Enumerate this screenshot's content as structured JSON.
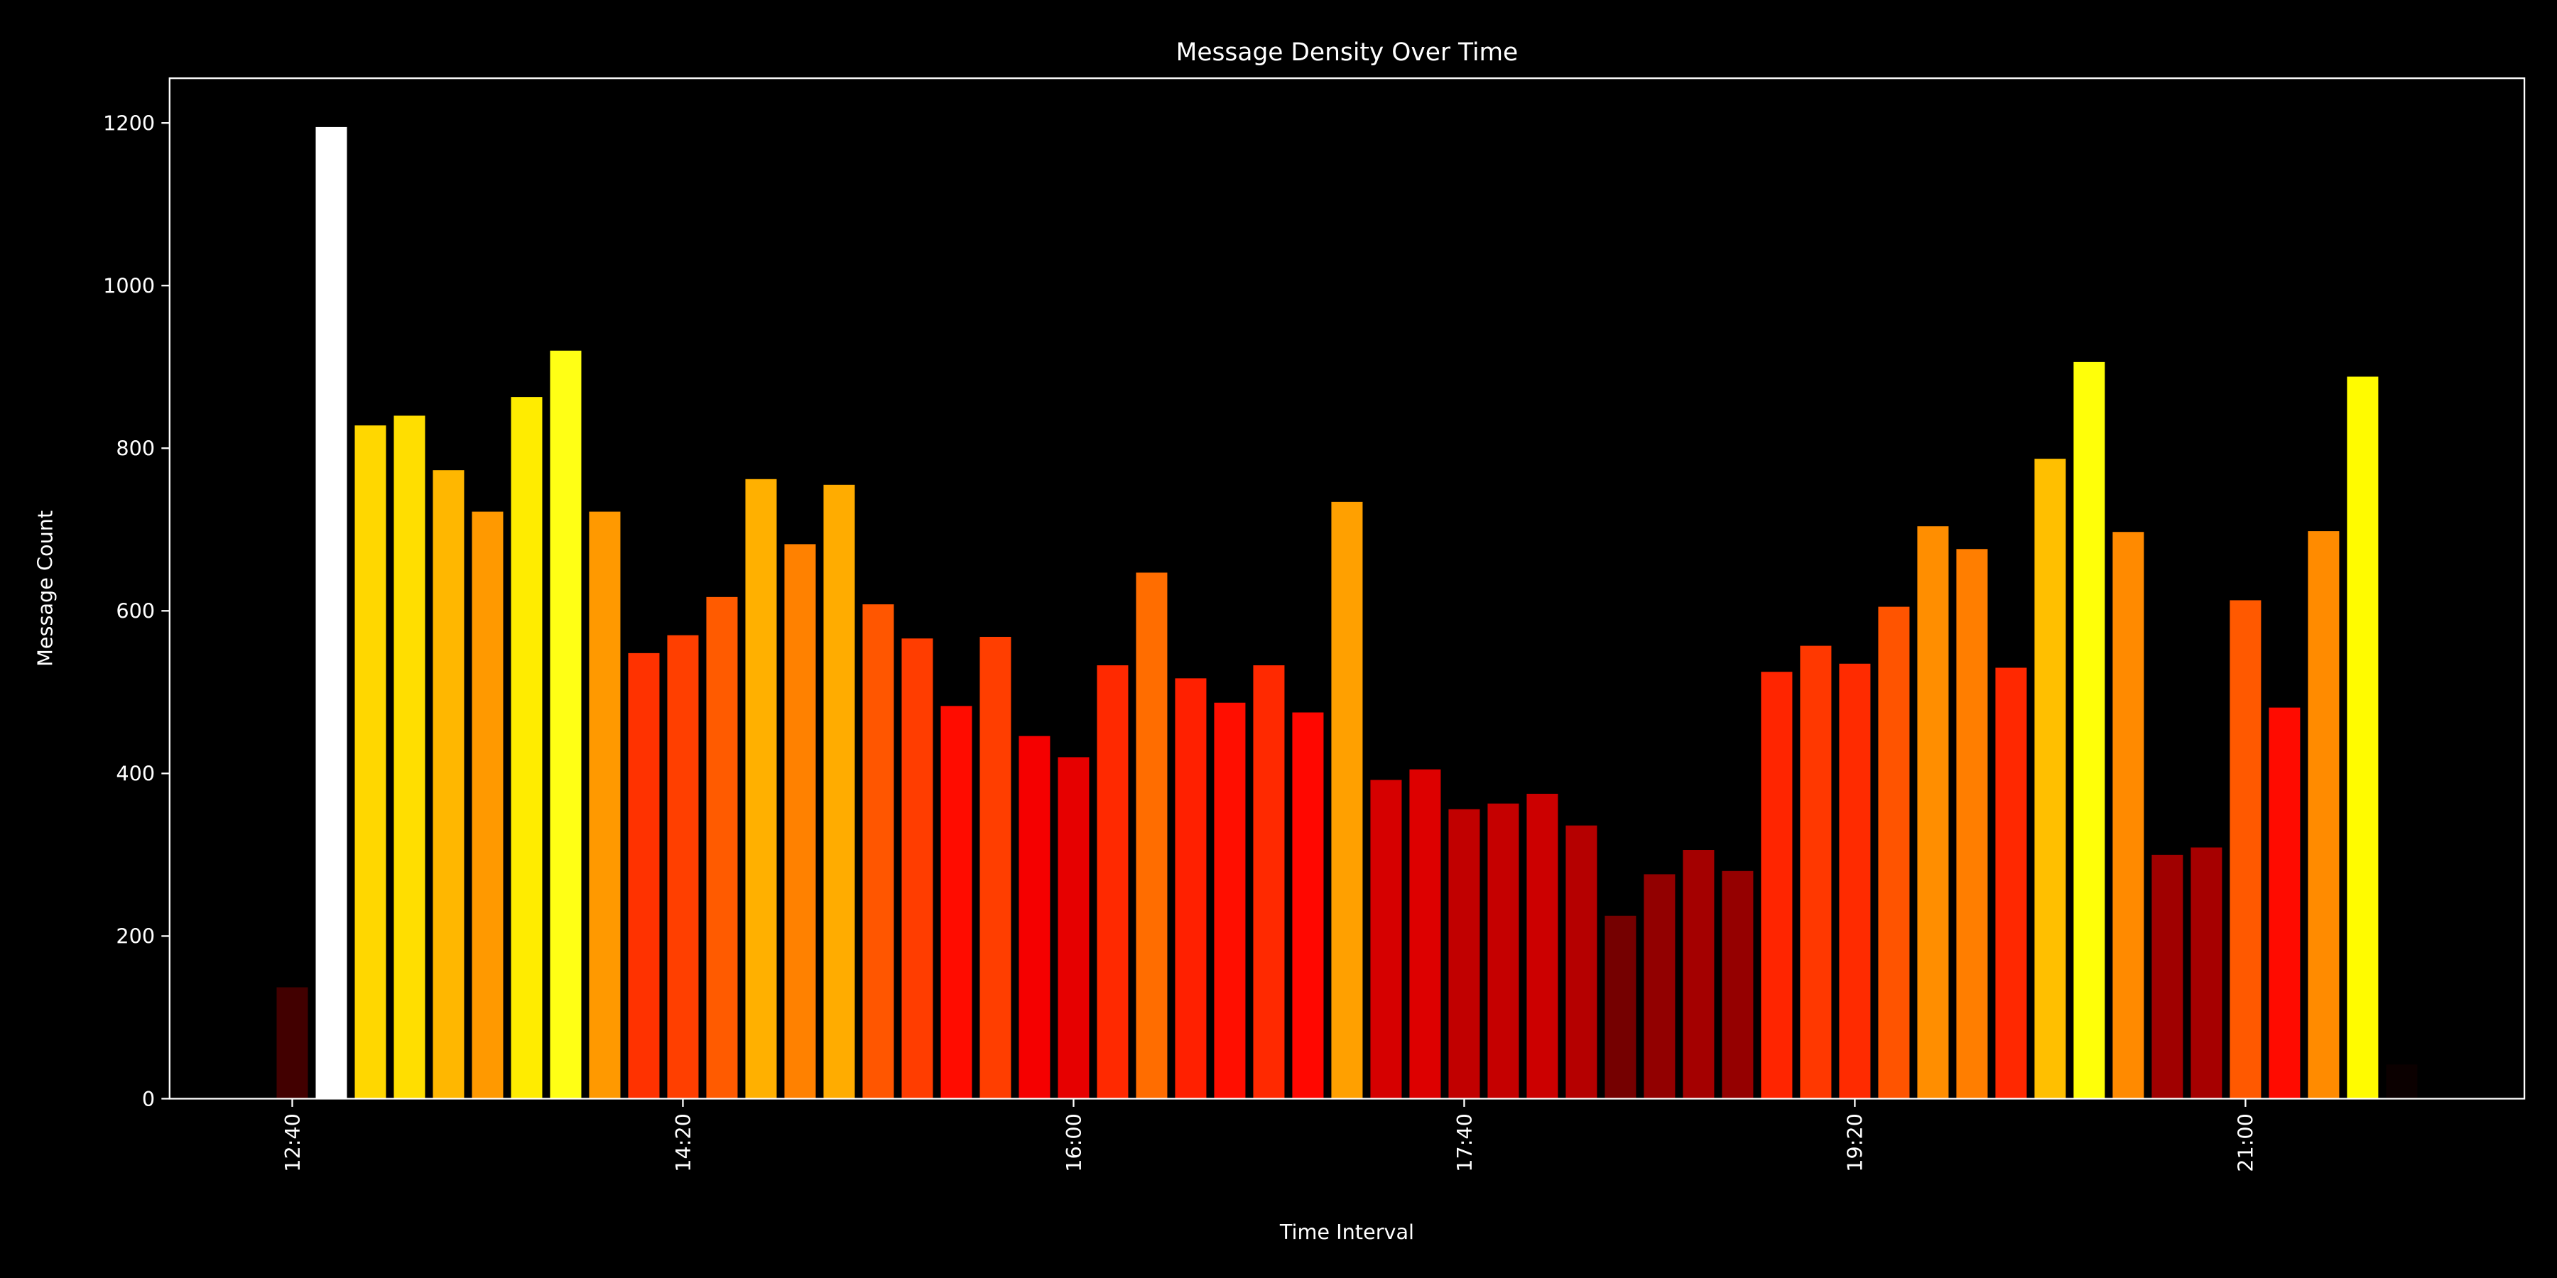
{
  "chart_data": {
    "type": "bar",
    "title": "Message Density Over Time",
    "x_label": "Time Interval",
    "y_label": "Message Count",
    "categories": [
      "12:40",
      null,
      null,
      null,
      null,
      null,
      null,
      null,
      null,
      null,
      "14:20",
      null,
      null,
      null,
      null,
      null,
      null,
      null,
      null,
      null,
      "16:00",
      null,
      null,
      null,
      null,
      null,
      null,
      null,
      null,
      null,
      "17:40",
      null,
      null,
      null,
      null,
      null,
      null,
      null,
      null,
      null,
      "19:20",
      null,
      null,
      null,
      null,
      null,
      null,
      null,
      null,
      null,
      "21:00",
      null,
      null,
      null,
      null
    ],
    "values": [
      137,
      1195,
      828,
      840,
      773,
      722,
      863,
      920,
      722,
      548,
      570,
      617,
      762,
      682,
      755,
      608,
      566,
      483,
      568,
      446,
      420,
      533,
      647,
      517,
      487,
      533,
      475,
      734,
      392,
      405,
      356,
      363,
      375,
      336,
      225,
      276,
      306,
      280,
      525,
      557,
      535,
      605,
      704,
      676,
      530,
      787,
      906,
      697,
      300,
      309,
      613,
      481,
      698,
      888,
      42
    ],
    "colormap": "hot",
    "ylim": [
      0,
      1255
    ],
    "yticks": [
      0,
      200,
      400,
      600,
      800,
      1000,
      1200
    ]
  }
}
